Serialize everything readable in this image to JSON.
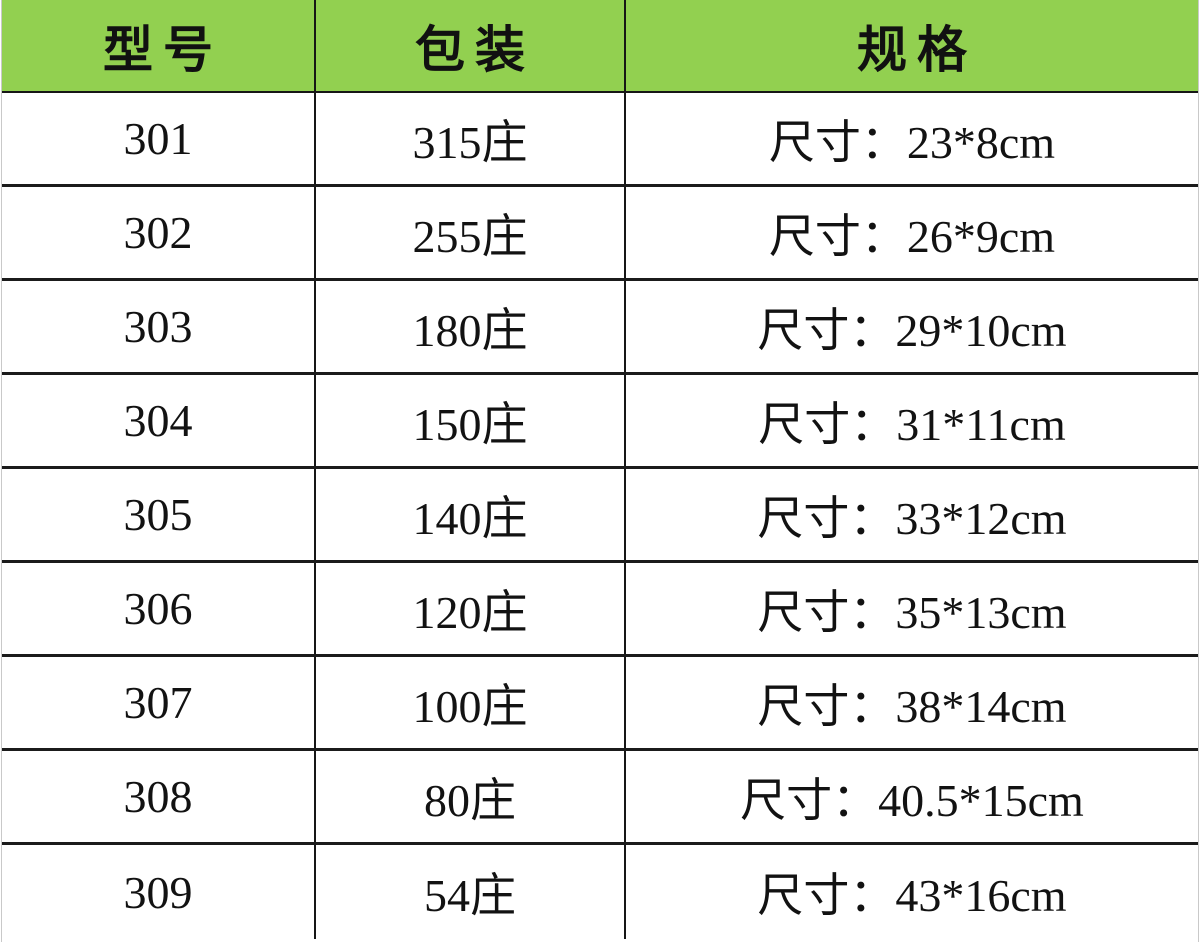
{
  "table": {
    "headers": [
      {
        "label": "型号"
      },
      {
        "label": "包装"
      },
      {
        "label": "规格"
      }
    ],
    "rows": [
      {
        "model": "301",
        "packaging": "315庄",
        "spec": "尺寸：23*8cm"
      },
      {
        "model": "302",
        "packaging": "255庄",
        "spec": "尺寸：26*9cm"
      },
      {
        "model": "303",
        "packaging": "180庄",
        "spec": "尺寸：29*10cm"
      },
      {
        "model": "304",
        "packaging": "150庄",
        "spec": "尺寸：31*11cm"
      },
      {
        "model": "305",
        "packaging": "140庄",
        "spec": "尺寸：33*12cm"
      },
      {
        "model": "306",
        "packaging": "120庄",
        "spec": "尺寸：35*13cm"
      },
      {
        "model": "307",
        "packaging": "100庄",
        "spec": "尺寸：38*14cm"
      },
      {
        "model": "308",
        "packaging": "80庄",
        "spec": "尺寸：40.5*15cm"
      },
      {
        "model": "309",
        "packaging": "54庄",
        "spec": "尺寸：43*16cm"
      }
    ]
  },
  "colors": {
    "header_bg": "#92d050",
    "grid_border": "#161616",
    "text": "#121212",
    "background": "#ffffff"
  }
}
